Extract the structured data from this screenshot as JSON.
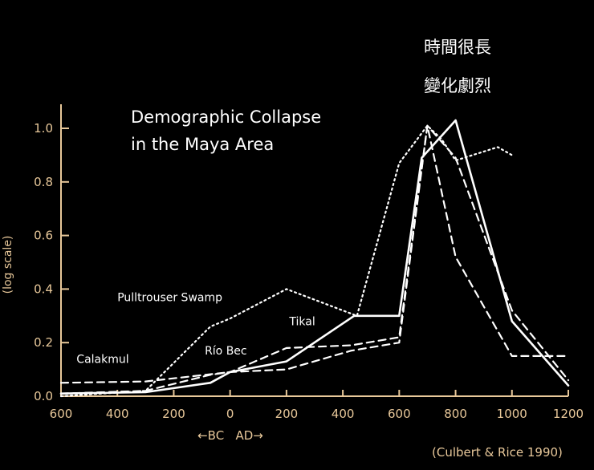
{
  "overlay": {
    "line1": "時間很長",
    "line2": "變化劇烈"
  },
  "source": "(Culbert & Rice 1990)",
  "chart_data": {
    "type": "line",
    "title_lines": [
      "Demographic Collapse",
      "in the Maya Area"
    ],
    "ylabel": "(log scale)",
    "xlabel": "←BC   AD→",
    "xlim": [
      -600,
      1200
    ],
    "ylim": [
      0,
      1.0
    ],
    "x_ticks": [
      -600,
      -400,
      -200,
      0,
      200,
      400,
      600,
      800,
      1000,
      1200
    ],
    "x_tick_labels": [
      "600",
      "400",
      "200",
      "0",
      "200",
      "400",
      "600",
      "800",
      "1000",
      "1200"
    ],
    "y_ticks": [
      0,
      0.2,
      0.4,
      0.6,
      0.8,
      1.0
    ],
    "y_tick_labels": [
      "0.0",
      "0.2",
      "0.4",
      "0.6",
      "0.8",
      "1.0"
    ],
    "axis_color": "#e8c89a",
    "series": [
      {
        "name": "Pulltrouser Swamp",
        "style": "dotted",
        "x": [
          -600,
          -300,
          -70,
          0,
          200,
          450,
          600,
          700,
          750,
          800,
          950,
          1000
        ],
        "y": [
          0.0,
          0.02,
          0.26,
          0.29,
          0.4,
          0.3,
          0.87,
          1.01,
          0.96,
          0.88,
          0.93,
          0.9
        ]
      },
      {
        "name": "Tikal",
        "style": "solid",
        "x": [
          -600,
          -300,
          -70,
          0,
          200,
          440,
          600,
          680,
          800,
          1000,
          1200
        ],
        "y": [
          0.01,
          0.015,
          0.05,
          0.09,
          0.13,
          0.3,
          0.3,
          0.89,
          1.03,
          0.28,
          0.04
        ]
      },
      {
        "name": "Río Bec",
        "style": "dashed",
        "x": [
          -600,
          -300,
          -70,
          0,
          200,
          430,
          600,
          700,
          800,
          1000,
          1200
        ],
        "y": [
          0.01,
          0.02,
          0.08,
          0.09,
          0.18,
          0.19,
          0.22,
          1.01,
          0.89,
          0.32,
          0.06
        ]
      },
      {
        "name": "Calakmul",
        "style": "dashed",
        "x": [
          -600,
          -300,
          0,
          200,
          430,
          600,
          700,
          800,
          1000,
          1200
        ],
        "y": [
          0.05,
          0.055,
          0.09,
          0.1,
          0.17,
          0.2,
          1.01,
          0.52,
          0.15,
          0.15
        ]
      }
    ],
    "series_label_positions": [
      {
        "series": "Pulltrouser Swamp",
        "x": -400,
        "y": 0.355
      },
      {
        "series": "Tikal",
        "x": 210,
        "y": 0.265
      },
      {
        "series": "Río Bec",
        "x": -90,
        "y": 0.155
      },
      {
        "series": "Calakmul",
        "x": -545,
        "y": 0.125
      }
    ]
  }
}
